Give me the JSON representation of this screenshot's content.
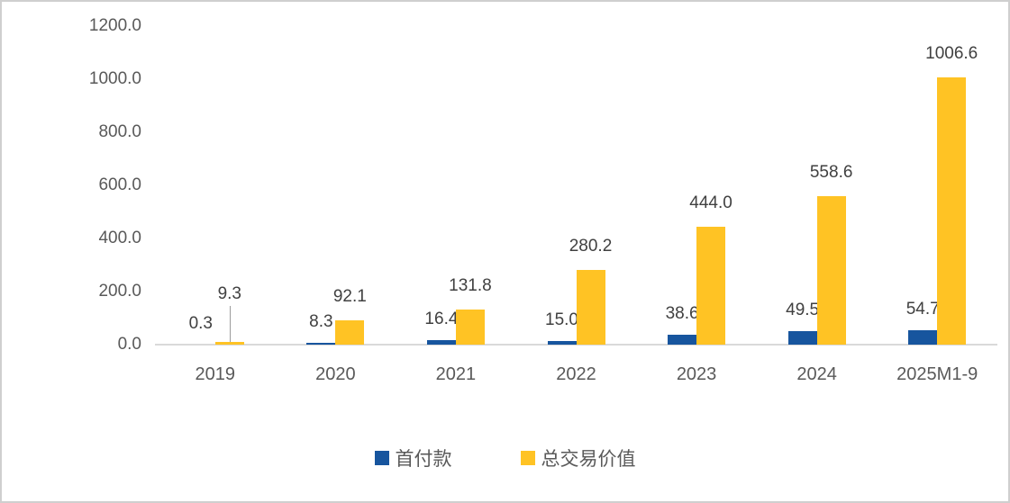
{
  "chart_data": {
    "type": "bar",
    "title": "",
    "xlabel": "",
    "ylabel": "",
    "categories": [
      "2019",
      "2020",
      "2021",
      "2022",
      "2023",
      "2024",
      "2025M1-9"
    ],
    "series": [
      {
        "name": "首付款",
        "slug": "first-payment",
        "color": "#17559E",
        "values": [
          0.3,
          8.3,
          16.4,
          15.0,
          38.6,
          49.5,
          54.7
        ],
        "labels": [
          "0.3",
          "8.3",
          "16.4",
          "15.0",
          "38.6",
          "49.5",
          "54.7"
        ]
      },
      {
        "name": "总交易价值",
        "slug": "total-transaction-value",
        "color": "#FFC324",
        "values": [
          9.3,
          92.1,
          131.8,
          280.2,
          444.0,
          558.6,
          1006.6
        ],
        "labels": [
          "9.3",
          "92.1",
          "131.8",
          "280.2",
          "444.0",
          "558.6",
          "1006.6"
        ]
      }
    ],
    "ylim": [
      0,
      1200
    ],
    "y_ticks": [
      {
        "value": 0,
        "label": "0.0"
      },
      {
        "value": 200,
        "label": "200.0"
      },
      {
        "value": 400,
        "label": "400.0"
      },
      {
        "value": 600,
        "label": "600.0"
      },
      {
        "value": 800,
        "label": "800.0"
      },
      {
        "value": 1000,
        "label": "1000.0"
      },
      {
        "value": 1200,
        "label": "1200.0"
      }
    ],
    "grid": false,
    "data_labels": true,
    "legend_position": "bottom",
    "callout": {
      "category_index": 0,
      "series_index": 1
    }
  },
  "colors": {
    "axis_line": "#D9D9D9",
    "tick_text": "#595959",
    "data_label_text": "#404040",
    "leader_line": "#9B9B9B",
    "frame_border": "#CFCFCF"
  }
}
